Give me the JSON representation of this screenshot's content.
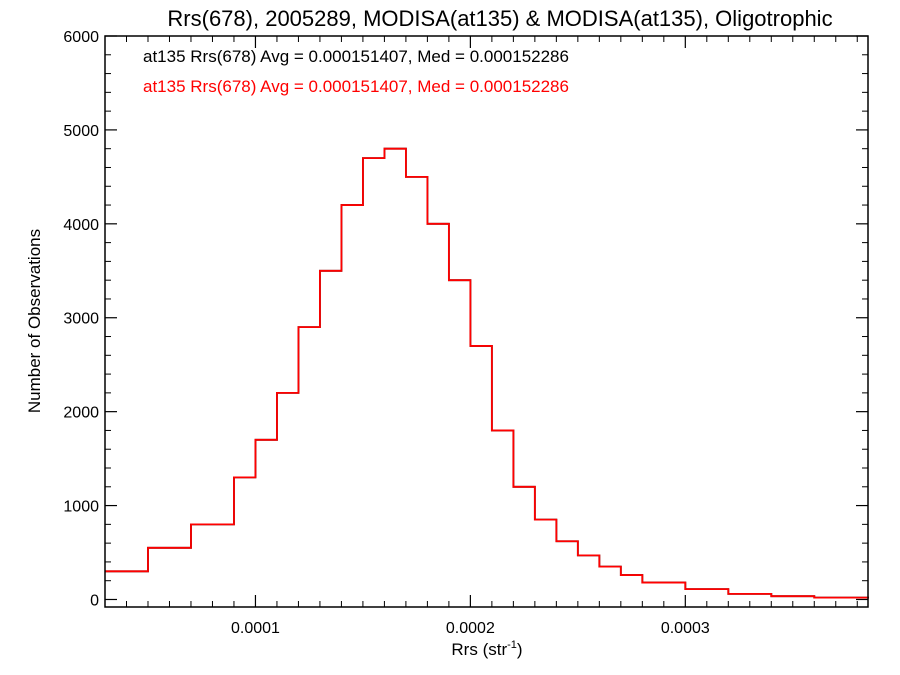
{
  "chart_data": {
    "type": "line",
    "subtype": "step-histogram",
    "title": "Rrs(678), 2005289, MODISA(at135) & MODISA(at135), Oligotrophic",
    "xlabel_base": "Rrs (str",
    "xlabel_sup": "-1",
    "xlabel_close": ")",
    "ylabel": "Number of Observations",
    "xlim": [
      3e-05,
      0.000385
    ],
    "ylim": [
      -80,
      6000
    ],
    "x_ticks": [
      {
        "value": 0.0001,
        "label": "0.0001"
      },
      {
        "value": 0.0002,
        "label": "0.0002"
      },
      {
        "value": 0.0003,
        "label": "0.0003"
      }
    ],
    "y_ticks": [
      {
        "value": 0,
        "label": "0"
      },
      {
        "value": 1000,
        "label": "1000"
      },
      {
        "value": 2000,
        "label": "2000"
      },
      {
        "value": 3000,
        "label": "3000"
      },
      {
        "value": 4000,
        "label": "4000"
      },
      {
        "value": 5000,
        "label": "5000"
      },
      {
        "value": 6000,
        "label": "6000"
      }
    ],
    "annotations": [
      {
        "text": "at135 Rrs(678) Avg = 0.000151407, Med = 0.000152286",
        "color": "#000000"
      },
      {
        "text": "at135 Rrs(678) Avg = 0.000151407, Med = 0.000152286",
        "color": "#ff0000"
      }
    ],
    "grid": false,
    "series": [
      {
        "color": "#000000",
        "x": [
          3e-05,
          5e-05,
          7e-05,
          9e-05,
          0.0001,
          0.00011,
          0.00012,
          0.00013,
          0.00014,
          0.00015,
          0.00016,
          0.00017,
          0.00018,
          0.00019,
          0.0002,
          0.00021,
          0.00022,
          0.00023,
          0.00024,
          0.00025,
          0.00026,
          0.00027,
          0.00028,
          0.0003,
          0.00032,
          0.00034,
          0.00036,
          0.000385
        ],
        "values": [
          300,
          550,
          800,
          1300,
          1700,
          2200,
          2900,
          3500,
          4200,
          4700,
          4800,
          4500,
          4000,
          3400,
          2700,
          1800,
          1200,
          850,
          620,
          470,
          350,
          260,
          180,
          110,
          60,
          35,
          20,
          10
        ]
      },
      {
        "color": "#ff0000",
        "x": [
          3e-05,
          5e-05,
          7e-05,
          9e-05,
          0.0001,
          0.00011,
          0.00012,
          0.00013,
          0.00014,
          0.00015,
          0.00016,
          0.00017,
          0.00018,
          0.00019,
          0.0002,
          0.00021,
          0.00022,
          0.00023,
          0.00024,
          0.00025,
          0.00026,
          0.00027,
          0.00028,
          0.0003,
          0.00032,
          0.00034,
          0.00036,
          0.000385
        ],
        "values": [
          300,
          550,
          800,
          1300,
          1700,
          2200,
          2900,
          3500,
          4200,
          4700,
          4800,
          4500,
          4000,
          3400,
          2700,
          1800,
          1200,
          850,
          620,
          470,
          350,
          260,
          180,
          110,
          60,
          35,
          20,
          10
        ]
      }
    ]
  }
}
